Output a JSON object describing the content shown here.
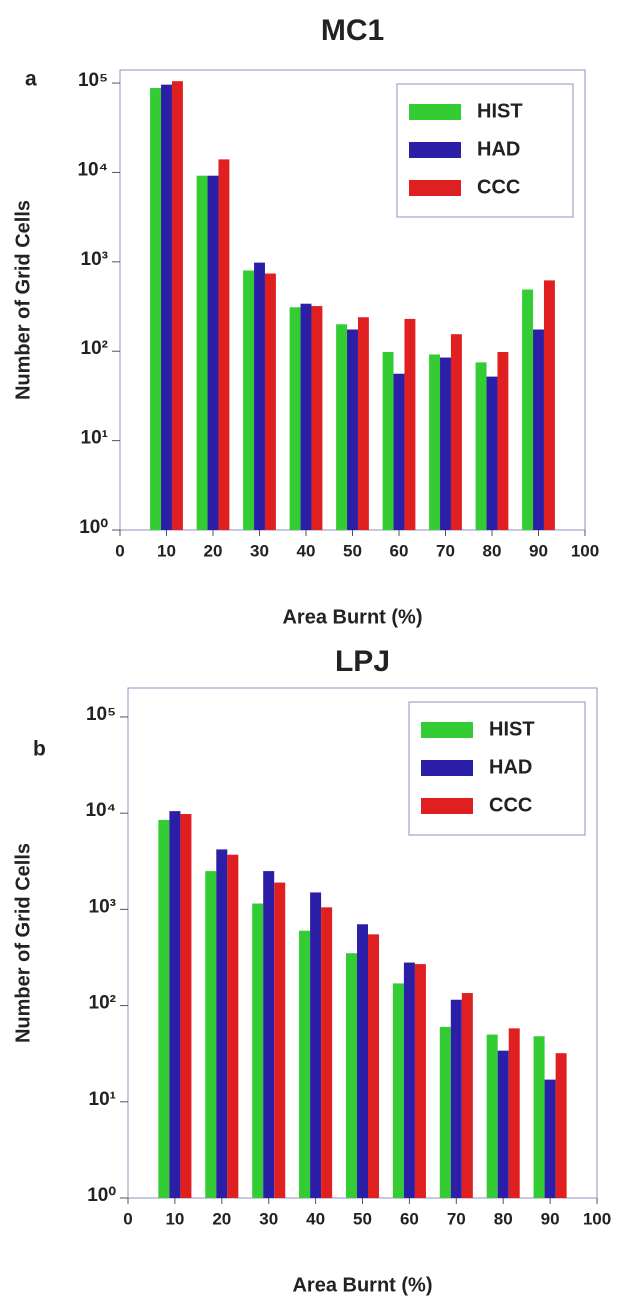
{
  "chart_data": [
    {
      "type": "bar",
      "title": "MC1",
      "panel": "a",
      "xlabel": "Area Burnt (%)",
      "ylabel": "Number of Grid Cells",
      "x": [
        10,
        20,
        30,
        40,
        50,
        60,
        70,
        80,
        90
      ],
      "series": [
        {
          "name": "HIST",
          "color": "#33cc33",
          "values": [
            88000,
            9200,
            800,
            310,
            200,
            98,
            92,
            75,
            490
          ]
        },
        {
          "name": "HAD",
          "color": "#2b1fa8",
          "values": [
            96000,
            9200,
            980,
            340,
            175,
            56,
            85,
            52,
            175
          ]
        },
        {
          "name": "CCC",
          "color": "#e02020",
          "values": [
            105000,
            14000,
            740,
            320,
            240,
            230,
            155,
            98,
            620
          ]
        }
      ],
      "xlim": [
        0,
        100
      ],
      "xticks": [
        0,
        10,
        20,
        30,
        40,
        50,
        60,
        70,
        80,
        90,
        100
      ],
      "yscale": "log",
      "ylim": [
        1,
        140000
      ],
      "yticks": [
        {
          "value": 1,
          "label": "10⁰"
        },
        {
          "value": 10,
          "label": "10¹"
        },
        {
          "value": 100,
          "label": "10²"
        },
        {
          "value": 1000,
          "label": "10³"
        },
        {
          "value": 10000,
          "label": "10⁴"
        },
        {
          "value": 100000,
          "label": "10⁵"
        }
      ],
      "legend": "upper right"
    },
    {
      "type": "bar",
      "title": "LPJ",
      "panel": "b",
      "xlabel": "Area Burnt (%)",
      "ylabel": "Number of Grid Cells",
      "x": [
        10,
        20,
        30,
        40,
        50,
        60,
        70,
        80,
        90
      ],
      "series": [
        {
          "name": "HIST",
          "color": "#33cc33",
          "values": [
            8500,
            2500,
            1150,
            600,
            350,
            170,
            60,
            50,
            48
          ]
        },
        {
          "name": "HAD",
          "color": "#2b1fa8",
          "values": [
            10500,
            4200,
            2500,
            1500,
            700,
            280,
            115,
            34,
            17
          ]
        },
        {
          "name": "CCC",
          "color": "#e02020",
          "values": [
            9800,
            3700,
            1900,
            1050,
            550,
            270,
            135,
            58,
            32
          ]
        }
      ],
      "xlim": [
        0,
        100
      ],
      "xticks": [
        0,
        10,
        20,
        30,
        40,
        50,
        60,
        70,
        80,
        90,
        100
      ],
      "yscale": "log",
      "ylim": [
        1,
        200000
      ],
      "yticks": [
        {
          "value": 1,
          "label": "10⁰"
        },
        {
          "value": 10,
          "label": "10¹"
        },
        {
          "value": 100,
          "label": "10²"
        },
        {
          "value": 1000,
          "label": "10³"
        },
        {
          "value": 10000,
          "label": "10⁴"
        },
        {
          "value": 100000,
          "label": "10⁵"
        }
      ],
      "legend": "upper right"
    }
  ]
}
